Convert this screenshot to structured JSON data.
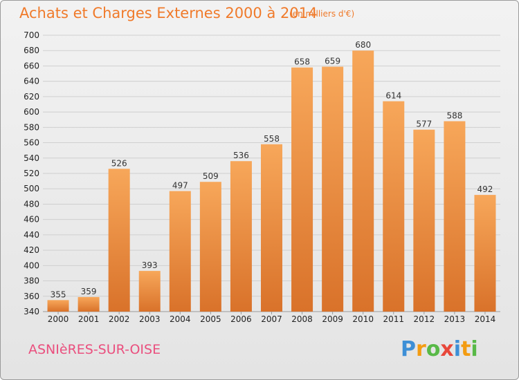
{
  "title": "Achats et Charges Externes 2000 à 2014",
  "subtitle": "(en milliers d'€)",
  "commune": "ASNIèRES-SUR-OISE",
  "logo": {
    "letters": [
      "P",
      "r",
      "o",
      "x",
      "i",
      "t",
      "i"
    ],
    "colors": [
      "#3d8fd6",
      "#f39c12",
      "#58b947",
      "#e8473a",
      "#3d8fd6",
      "#f39c12",
      "#58b947"
    ]
  },
  "colors": {
    "bar_top": "#f7a75a",
    "bar_bottom": "#d9722a",
    "accent": "#f07a2a"
  },
  "chart_data": {
    "type": "bar",
    "title": "Achats et Charges Externes 2000 à 2014",
    "subtitle": "(en milliers d'€)",
    "categories": [
      "2000",
      "2001",
      "2002",
      "2003",
      "2004",
      "2005",
      "2006",
      "2007",
      "2008",
      "2009",
      "2010",
      "2011",
      "2012",
      "2013",
      "2014"
    ],
    "values": [
      355,
      359,
      526,
      393,
      497,
      509,
      536,
      558,
      658,
      659,
      680,
      614,
      577,
      588,
      492
    ],
    "ylim": [
      340,
      700
    ],
    "yticks": [
      340,
      360,
      380,
      400,
      420,
      440,
      460,
      480,
      500,
      520,
      540,
      560,
      580,
      600,
      620,
      640,
      660,
      680,
      700
    ],
    "grid": true
  }
}
